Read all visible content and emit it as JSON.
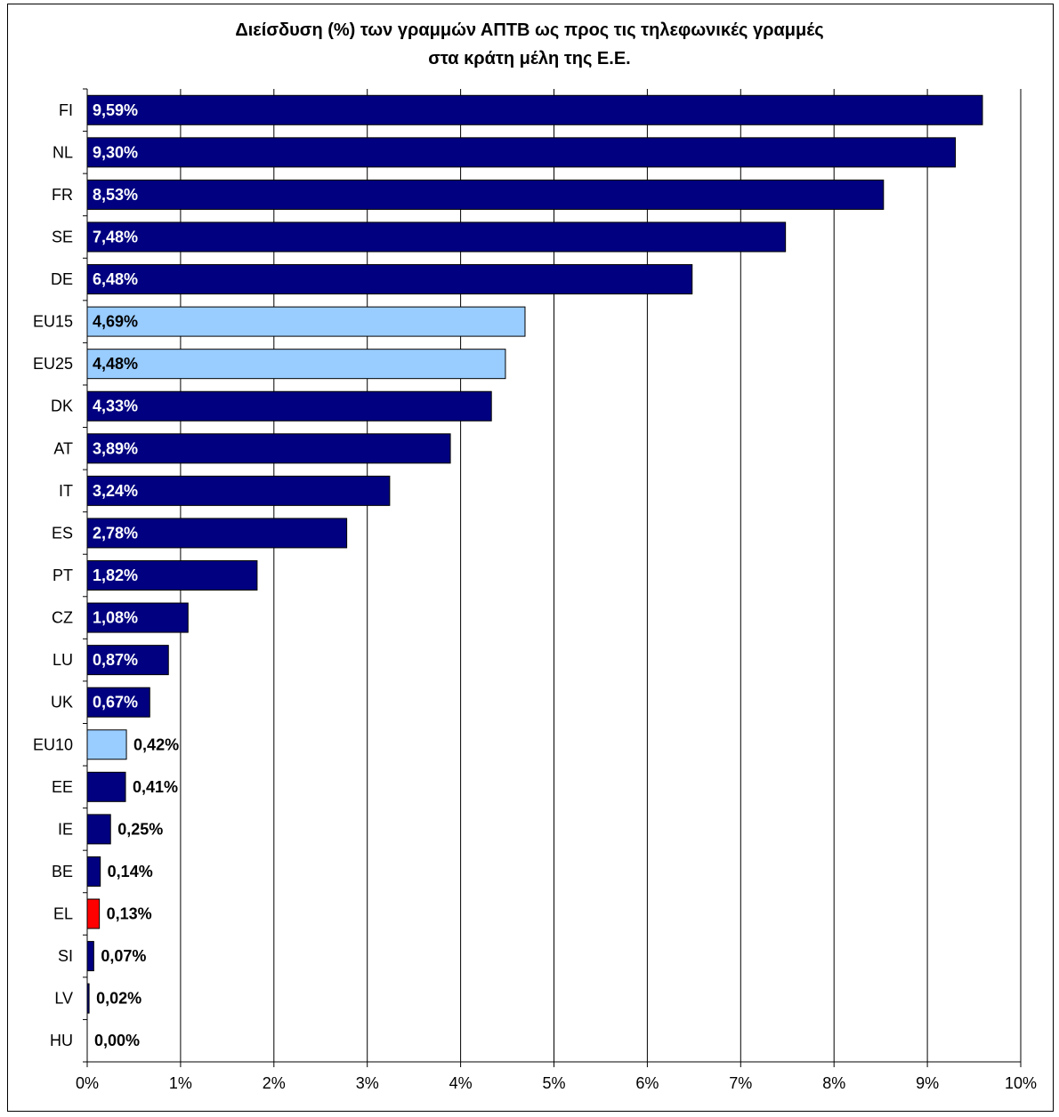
{
  "chart_data": {
    "type": "bar",
    "orientation": "horizontal",
    "title_line1": "Διείσδυση (%) των γραμμών ΑΠΤΒ ως προς τις τηλεφωνικές γραμμές",
    "title_line2": "στα κράτη μέλη της Ε.Ε.",
    "xlabel": "",
    "ylabel": "",
    "xlim": [
      0,
      10
    ],
    "xticks": [
      "0%",
      "1%",
      "2%",
      "3%",
      "4%",
      "5%",
      "6%",
      "7%",
      "8%",
      "9%",
      "10%"
    ],
    "grid": true,
    "legend": "none",
    "categories": [
      "FI",
      "NL",
      "FR",
      "SE",
      "DE",
      "EU15",
      "EU25",
      "DK",
      "AT",
      "IT",
      "ES",
      "PT",
      "CZ",
      "LU",
      "UK",
      "EU10",
      "EE",
      "IE",
      "BE",
      "EL",
      "SI",
      "LV",
      "HU"
    ],
    "values": [
      9.59,
      9.3,
      8.53,
      7.48,
      6.48,
      4.69,
      4.48,
      4.33,
      3.89,
      3.24,
      2.78,
      1.82,
      1.08,
      0.87,
      0.67,
      0.42,
      0.41,
      0.25,
      0.14,
      0.13,
      0.07,
      0.02,
      0.0
    ],
    "labels": [
      "9,59%",
      "9,30%",
      "8,53%",
      "7,48%",
      "6,48%",
      "4,69%",
      "4,48%",
      "4,33%",
      "3,89%",
      "3,24%",
      "2,78%",
      "1,82%",
      "1,08%",
      "0,87%",
      "0,67%",
      "0,42%",
      "0,41%",
      "0,25%",
      "0,14%",
      "0,13%",
      "0,07%",
      "0,02%",
      "0,00%"
    ],
    "bar_colors": [
      "#000080",
      "#000080",
      "#000080",
      "#000080",
      "#000080",
      "#99ccff",
      "#99ccff",
      "#000080",
      "#000080",
      "#000080",
      "#000080",
      "#000080",
      "#000080",
      "#000080",
      "#000080",
      "#99ccff",
      "#000080",
      "#000080",
      "#000080",
      "#ff0000",
      "#000080",
      "#000080",
      "#000080"
    ],
    "colors": {
      "country": "#000080",
      "aggregate": "#99ccff",
      "highlight": "#ff0000"
    }
  }
}
